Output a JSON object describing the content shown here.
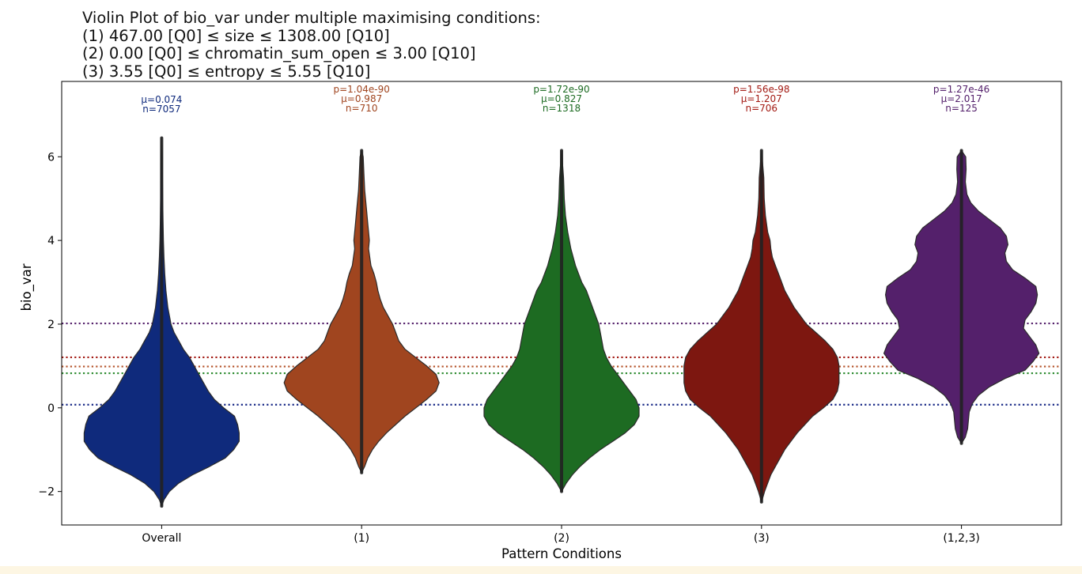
{
  "title_lines": [
    "Violin Plot of bio_var under multiple maximising conditions:",
    "(1) 467.00 [Q0] ≤ size ≤ 1308.00 [Q10]",
    "(2) 0.00 [Q0] ≤ chromatin_sum_open ≤ 3.00 [Q10]",
    "(3) 3.55 [Q0] ≤ entropy ≤ 5.55 [Q10]"
  ],
  "chart_data": {
    "type": "violin",
    "title": "Violin Plot of bio_var under multiple maximising conditions:",
    "xlabel": "Pattern Conditions",
    "ylabel": "bio_var",
    "ylim": [
      -2.8,
      7.8
    ],
    "yticks": [
      -2,
      0,
      2,
      4,
      6
    ],
    "ytick_labels": [
      "−2",
      "0",
      "2",
      "4",
      "6"
    ],
    "grid": false,
    "categories": [
      "Overall",
      "(1)",
      "(2)",
      "(3)",
      "(1,2,3)"
    ],
    "series": [
      {
        "category": "Overall",
        "color": "#0f2a7c",
        "stats_lines": [
          "μ=0.074",
          "n=7057"
        ],
        "mean": 0.074,
        "n": 7057,
        "min": -2.35,
        "max": 6.45,
        "density": [
          [
            -2.35,
            0.0
          ],
          [
            -2.2,
            0.03
          ],
          [
            -2.0,
            0.1
          ],
          [
            -1.8,
            0.22
          ],
          [
            -1.6,
            0.4
          ],
          [
            -1.4,
            0.62
          ],
          [
            -1.2,
            0.82
          ],
          [
            -1.0,
            0.93
          ],
          [
            -0.8,
            1.0
          ],
          [
            -0.6,
            1.0
          ],
          [
            -0.4,
            0.98
          ],
          [
            -0.2,
            0.94
          ],
          [
            0.0,
            0.8
          ],
          [
            0.2,
            0.68
          ],
          [
            0.4,
            0.6
          ],
          [
            0.6,
            0.54
          ],
          [
            0.8,
            0.48
          ],
          [
            1.0,
            0.42
          ],
          [
            1.2,
            0.36
          ],
          [
            1.4,
            0.28
          ],
          [
            1.6,
            0.22
          ],
          [
            1.8,
            0.16
          ],
          [
            2.0,
            0.12
          ],
          [
            2.4,
            0.08
          ],
          [
            2.8,
            0.055
          ],
          [
            3.2,
            0.04
          ],
          [
            3.6,
            0.03
          ],
          [
            4.0,
            0.022
          ],
          [
            4.5,
            0.017
          ],
          [
            5.0,
            0.013
          ],
          [
            5.5,
            0.01
          ],
          [
            6.0,
            0.008
          ],
          [
            6.45,
            0.0
          ]
        ]
      },
      {
        "category": "(1)",
        "color": "#a0451f",
        "stats_lines": [
          "p=1.04e-90",
          "μ=0.987",
          "n=710"
        ],
        "p_value": "1.04e-90",
        "mean": 0.987,
        "n": 710,
        "min": -1.55,
        "max": 6.15,
        "density": [
          [
            -1.55,
            0.0
          ],
          [
            -1.4,
            0.04
          ],
          [
            -1.2,
            0.08
          ],
          [
            -1.0,
            0.14
          ],
          [
            -0.8,
            0.22
          ],
          [
            -0.6,
            0.32
          ],
          [
            -0.4,
            0.44
          ],
          [
            -0.2,
            0.56
          ],
          [
            0.0,
            0.7
          ],
          [
            0.2,
            0.84
          ],
          [
            0.4,
            0.96
          ],
          [
            0.6,
            1.0
          ],
          [
            0.8,
            0.96
          ],
          [
            1.0,
            0.84
          ],
          [
            1.2,
            0.7
          ],
          [
            1.4,
            0.56
          ],
          [
            1.6,
            0.48
          ],
          [
            1.8,
            0.44
          ],
          [
            2.0,
            0.4
          ],
          [
            2.2,
            0.34
          ],
          [
            2.4,
            0.28
          ],
          [
            2.6,
            0.24
          ],
          [
            2.8,
            0.21
          ],
          [
            3.0,
            0.19
          ],
          [
            3.2,
            0.16
          ],
          [
            3.4,
            0.12
          ],
          [
            3.8,
            0.09
          ],
          [
            4.0,
            0.1
          ],
          [
            4.4,
            0.08
          ],
          [
            4.8,
            0.06
          ],
          [
            5.2,
            0.04
          ],
          [
            5.6,
            0.03
          ],
          [
            6.0,
            0.02
          ],
          [
            6.15,
            0.0
          ]
        ]
      },
      {
        "category": "(2)",
        "color": "#1d6b22",
        "stats_lines": [
          "p=1.72e-90",
          "μ=0.827",
          "n=1318"
        ],
        "p_value": "1.72e-90",
        "mean": 0.827,
        "n": 1318,
        "min": -2.0,
        "max": 6.15,
        "density": [
          [
            -2.0,
            0.0
          ],
          [
            -1.8,
            0.06
          ],
          [
            -1.6,
            0.14
          ],
          [
            -1.4,
            0.24
          ],
          [
            -1.2,
            0.36
          ],
          [
            -1.0,
            0.5
          ],
          [
            -0.8,
            0.66
          ],
          [
            -0.6,
            0.82
          ],
          [
            -0.4,
            0.94
          ],
          [
            -0.2,
            1.0
          ],
          [
            0.0,
            1.0
          ],
          [
            0.2,
            0.96
          ],
          [
            0.4,
            0.88
          ],
          [
            0.6,
            0.8
          ],
          [
            0.8,
            0.72
          ],
          [
            1.0,
            0.64
          ],
          [
            1.2,
            0.58
          ],
          [
            1.4,
            0.54
          ],
          [
            1.6,
            0.52
          ],
          [
            1.8,
            0.5
          ],
          [
            2.0,
            0.48
          ],
          [
            2.2,
            0.44
          ],
          [
            2.4,
            0.4
          ],
          [
            2.6,
            0.36
          ],
          [
            2.8,
            0.32
          ],
          [
            3.0,
            0.26
          ],
          [
            3.4,
            0.18
          ],
          [
            3.8,
            0.12
          ],
          [
            4.2,
            0.08
          ],
          [
            4.6,
            0.05
          ],
          [
            5.0,
            0.035
          ],
          [
            5.5,
            0.025
          ],
          [
            6.15,
            0.0
          ]
        ]
      },
      {
        "category": "(3)",
        "color": "#7d1710",
        "stats_lines": [
          "p=1.56e-98",
          "μ=1.207",
          "n=706"
        ],
        "p_value": "1.56e-98",
        "mean": 1.207,
        "n": 706,
        "min": -2.25,
        "max": 6.15,
        "density": [
          [
            -2.25,
            0.0
          ],
          [
            -2.0,
            0.04
          ],
          [
            -1.8,
            0.08
          ],
          [
            -1.6,
            0.12
          ],
          [
            -1.4,
            0.18
          ],
          [
            -1.2,
            0.24
          ],
          [
            -1.0,
            0.3
          ],
          [
            -0.8,
            0.38
          ],
          [
            -0.6,
            0.46
          ],
          [
            -0.4,
            0.56
          ],
          [
            -0.2,
            0.66
          ],
          [
            0.0,
            0.8
          ],
          [
            0.2,
            0.92
          ],
          [
            0.4,
            0.98
          ],
          [
            0.6,
            1.0
          ],
          [
            0.8,
            1.0
          ],
          [
            1.0,
            1.0
          ],
          [
            1.2,
            0.98
          ],
          [
            1.4,
            0.92
          ],
          [
            1.6,
            0.82
          ],
          [
            1.8,
            0.7
          ],
          [
            2.0,
            0.58
          ],
          [
            2.2,
            0.5
          ],
          [
            2.4,
            0.42
          ],
          [
            2.6,
            0.36
          ],
          [
            2.8,
            0.3
          ],
          [
            3.0,
            0.26
          ],
          [
            3.2,
            0.22
          ],
          [
            3.4,
            0.18
          ],
          [
            3.6,
            0.14
          ],
          [
            3.8,
            0.12
          ],
          [
            4.0,
            0.11
          ],
          [
            4.2,
            0.08
          ],
          [
            4.6,
            0.05
          ],
          [
            5.0,
            0.035
          ],
          [
            5.5,
            0.03
          ],
          [
            6.15,
            0.0
          ]
        ]
      },
      {
        "category": "(1,2,3)",
        "color": "#54206b",
        "stats_lines": [
          "p=1.27e-46",
          "μ=2.017",
          "n=125"
        ],
        "p_value": "1.27e-46",
        "mean": 2.017,
        "n": 125,
        "min": -0.85,
        "max": 6.15,
        "density": [
          [
            -0.85,
            0.0
          ],
          [
            -0.7,
            0.05
          ],
          [
            -0.5,
            0.08
          ],
          [
            -0.3,
            0.09
          ],
          [
            -0.1,
            0.1
          ],
          [
            0.1,
            0.14
          ],
          [
            0.3,
            0.22
          ],
          [
            0.5,
            0.36
          ],
          [
            0.7,
            0.56
          ],
          [
            0.9,
            0.82
          ],
          [
            1.1,
            0.92
          ],
          [
            1.3,
            1.0
          ],
          [
            1.5,
            0.96
          ],
          [
            1.7,
            0.88
          ],
          [
            1.9,
            0.8
          ],
          [
            2.1,
            0.82
          ],
          [
            2.3,
            0.9
          ],
          [
            2.5,
            0.96
          ],
          [
            2.7,
            0.98
          ],
          [
            2.9,
            0.96
          ],
          [
            3.1,
            0.82
          ],
          [
            3.3,
            0.66
          ],
          [
            3.5,
            0.58
          ],
          [
            3.7,
            0.56
          ],
          [
            3.9,
            0.6
          ],
          [
            4.1,
            0.58
          ],
          [
            4.3,
            0.5
          ],
          [
            4.5,
            0.36
          ],
          [
            4.7,
            0.22
          ],
          [
            4.9,
            0.12
          ],
          [
            5.1,
            0.07
          ],
          [
            5.4,
            0.05
          ],
          [
            5.7,
            0.06
          ],
          [
            6.0,
            0.055
          ],
          [
            6.15,
            0.0
          ]
        ]
      }
    ],
    "reference_lines": [
      {
        "value": 2.017,
        "color": "#54206b",
        "style": "dotted"
      },
      {
        "value": 1.207,
        "color": "#a31b14",
        "style": "dotted"
      },
      {
        "value": 0.987,
        "color": "#b5532a",
        "style": "dotted"
      },
      {
        "value": 0.827,
        "color": "#2a8a2e",
        "style": "dotted"
      },
      {
        "value": 0.074,
        "color": "#1f2f8a",
        "style": "dotted"
      }
    ]
  }
}
